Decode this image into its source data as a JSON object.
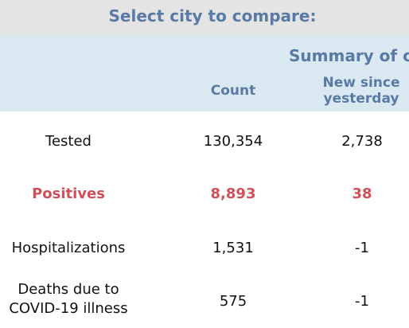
{
  "header": {
    "select_city_label": "Select city to compare:",
    "summary_title": "Summary of co",
    "col_count": "Count",
    "col_new_line1": "New since",
    "col_new_line2": "yesterday"
  },
  "rows": [
    {
      "label": "Tested",
      "count": "130,354",
      "new": "2,738"
    },
    {
      "label": "Positives",
      "count": "8,893",
      "new": "38"
    },
    {
      "label": "Hospitalizations",
      "count": "1,531",
      "new": "-1"
    },
    {
      "label_line1": "Deaths due to",
      "label_line2": "COVID-19 illness",
      "count": "575",
      "new": "-1"
    }
  ],
  "colors": {
    "title_blue": "#5a7aa6",
    "header_band": "#dae8f1",
    "highlight_red": "#d0505a",
    "top_bar_gray": "#e4e4e4"
  }
}
